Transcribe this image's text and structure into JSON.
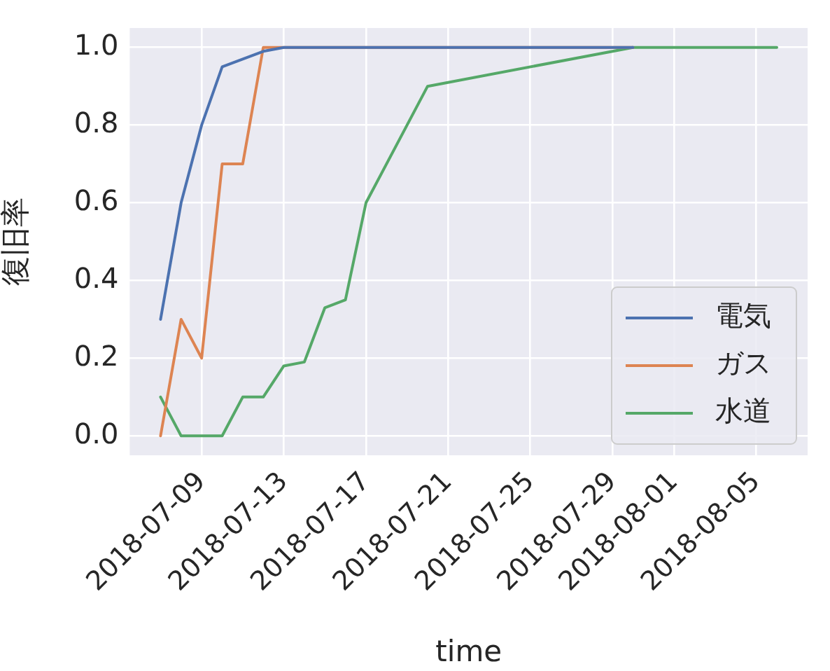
{
  "chart_data": {
    "type": "line",
    "xlabel": "time",
    "ylabel": "復旧率",
    "series": [
      {
        "name": "電気",
        "color": "#4c72b0",
        "x": [
          "2018-07-07",
          "2018-07-08",
          "2018-07-09",
          "2018-07-10",
          "2018-07-11",
          "2018-07-12",
          "2018-07-13",
          "2018-07-30"
        ],
        "values": [
          0.3,
          0.6,
          0.8,
          0.95,
          0.97,
          0.99,
          1.0,
          1.0
        ]
      },
      {
        "name": "ガス",
        "color": "#dd8452",
        "x": [
          "2018-07-07",
          "2018-07-08",
          "2018-07-09",
          "2018-07-10",
          "2018-07-11",
          "2018-07-12",
          "2018-07-30"
        ],
        "values": [
          0.0,
          0.3,
          0.2,
          0.7,
          0.7,
          1.0,
          1.0
        ]
      },
      {
        "name": "水道",
        "color": "#55a868",
        "x": [
          "2018-07-07",
          "2018-07-08",
          "2018-07-09",
          "2018-07-10",
          "2018-07-11",
          "2018-07-12",
          "2018-07-13",
          "2018-07-14",
          "2018-07-15",
          "2018-07-16",
          "2018-07-17",
          "2018-07-20",
          "2018-07-30",
          "2018-08-06"
        ],
        "values": [
          0.1,
          0.0,
          0.0,
          0.0,
          0.1,
          0.1,
          0.18,
          0.19,
          0.33,
          0.35,
          0.6,
          0.9,
          1.0,
          1.0
        ]
      }
    ],
    "xlim": [
      "2018-07-05T12:00",
      "2018-08-07T12:00"
    ],
    "xticks": [
      "2018-07-09",
      "2018-07-13",
      "2018-07-17",
      "2018-07-21",
      "2018-07-25",
      "2018-07-29",
      "2018-08-01",
      "2018-08-05"
    ],
    "ylim": [
      -0.05,
      1.05
    ],
    "yticks": [
      {
        "value": 0,
        "label": "0.0"
      },
      {
        "value": 0.2,
        "label": "0.2"
      },
      {
        "value": 0.4,
        "label": "0.4"
      },
      {
        "value": 0.6,
        "label": "0.6"
      },
      {
        "value": 0.8,
        "label": "0.8"
      },
      {
        "value": 1,
        "label": "1.0"
      }
    ],
    "grid": true,
    "legend": "bottom right",
    "marker": "none",
    "line_style": "solid"
  }
}
